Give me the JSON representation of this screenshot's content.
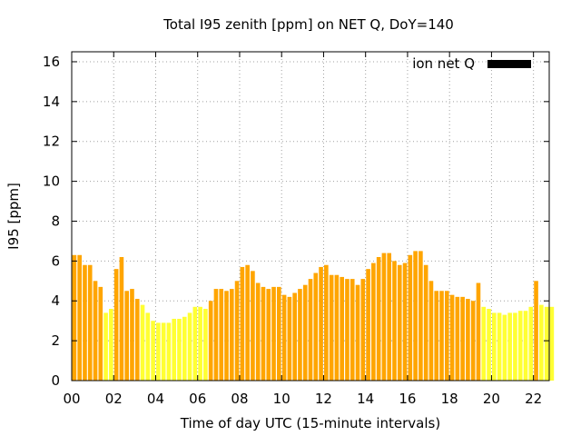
{
  "chart_data": {
    "type": "bar",
    "title": "Total I95 zenith [ppm] on NET Q, DoY=140",
    "xlabel": "Time of day UTC (15-minute intervals)",
    "ylabel": "I95 [ppm]",
    "xlim": [
      0,
      22.75
    ],
    "ylim": [
      0,
      16.5
    ],
    "x_ticks": [
      "00",
      "02",
      "04",
      "06",
      "08",
      "10",
      "12",
      "14",
      "16",
      "18",
      "20",
      "22"
    ],
    "y_ticks": [
      "0",
      "2",
      "4",
      "6",
      "8",
      "10",
      "12",
      "14",
      "16"
    ],
    "grid": true,
    "grid_style": "dotted",
    "legend": {
      "label": "ion net Q",
      "placement": "top-right",
      "color": "#000000"
    },
    "colors": {
      "orange": "#ffa500",
      "yellow": "#ffff33",
      "legend_swatch": "#000000"
    },
    "bar_width_hours": 0.2,
    "x_step_hours": 0.25,
    "x_start_hours": 0.125,
    "series": [
      {
        "values": [
          6.3,
          6.3,
          5.8,
          5.8,
          5.0,
          4.7,
          3.4,
          3.6,
          5.6,
          6.2,
          4.5,
          4.6,
          4.1,
          3.8,
          3.4,
          3.0,
          2.9,
          2.9,
          2.9,
          3.1,
          3.1,
          3.2,
          3.4,
          3.7,
          3.7,
          3.6,
          4.0,
          4.6,
          4.6,
          4.5,
          4.6,
          5.0,
          5.7,
          5.8,
          5.5,
          4.9,
          4.7,
          4.6,
          4.7,
          4.7,
          4.3,
          4.2,
          4.4,
          4.6,
          4.8,
          5.1,
          5.4,
          5.7,
          5.8,
          5.3,
          5.3,
          5.2,
          5.1,
          5.1,
          4.8,
          5.1,
          5.6,
          5.9,
          6.2,
          6.4,
          6.4,
          6.0,
          5.8,
          5.9,
          6.3,
          6.5,
          6.5,
          5.8,
          5.0,
          4.5,
          4.5,
          4.5,
          4.3,
          4.2,
          4.2,
          4.1,
          4.0,
          4.9,
          3.7,
          3.6,
          3.4,
          3.4,
          3.3,
          3.4,
          3.4,
          3.5,
          3.5,
          3.7,
          5.0,
          3.8,
          3.7,
          3.7
        ],
        "colors": [
          "orange",
          "orange",
          "orange",
          "orange",
          "orange",
          "orange",
          "yellow",
          "yellow",
          "orange",
          "orange",
          "orange",
          "orange",
          "orange",
          "yellow",
          "yellow",
          "yellow",
          "yellow",
          "yellow",
          "yellow",
          "yellow",
          "yellow",
          "yellow",
          "yellow",
          "yellow",
          "yellow",
          "yellow",
          "orange",
          "orange",
          "orange",
          "orange",
          "orange",
          "orange",
          "orange",
          "orange",
          "orange",
          "orange",
          "orange",
          "orange",
          "orange",
          "orange",
          "orange",
          "orange",
          "orange",
          "orange",
          "orange",
          "orange",
          "orange",
          "orange",
          "orange",
          "orange",
          "orange",
          "orange",
          "orange",
          "orange",
          "orange",
          "orange",
          "orange",
          "orange",
          "orange",
          "orange",
          "orange",
          "orange",
          "orange",
          "orange",
          "orange",
          "orange",
          "orange",
          "orange",
          "orange",
          "orange",
          "orange",
          "orange",
          "orange",
          "orange",
          "orange",
          "orange",
          "orange",
          "orange",
          "yellow",
          "yellow",
          "yellow",
          "yellow",
          "yellow",
          "yellow",
          "yellow",
          "yellow",
          "yellow",
          "yellow",
          "orange",
          "yellow",
          "yellow",
          "yellow"
        ]
      }
    ]
  }
}
